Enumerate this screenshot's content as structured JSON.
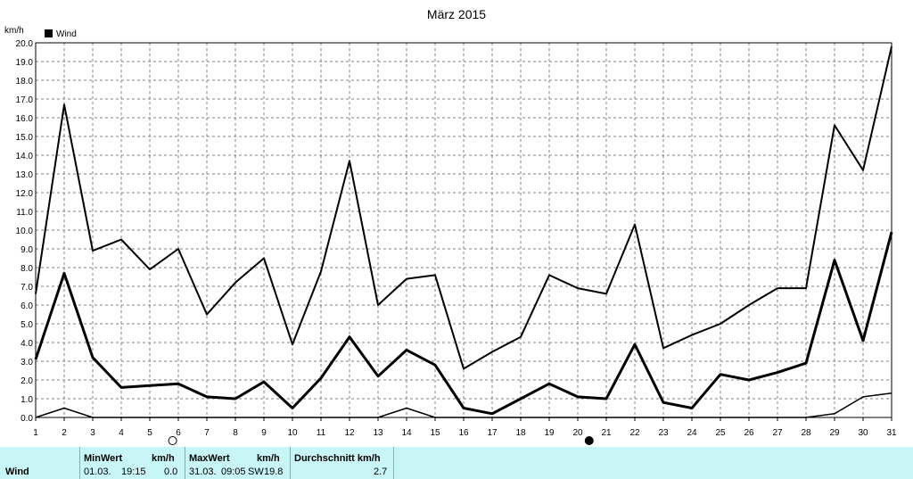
{
  "chart_data": {
    "type": "line",
    "title": "März 2015",
    "ylabel": "km/h",
    "xlabel": "",
    "ylim": [
      0,
      20
    ],
    "yticks": [
      "0.0",
      "1.0",
      "2.0",
      "3.0",
      "4.0",
      "5.0",
      "6.0",
      "7.0",
      "8.0",
      "9.0",
      "10.0",
      "11.0",
      "12.0",
      "13.0",
      "14.0",
      "15.0",
      "16.0",
      "17.0",
      "18.0",
      "19.0",
      "20.0"
    ],
    "x": [
      1,
      2,
      3,
      4,
      5,
      6,
      7,
      8,
      9,
      10,
      11,
      12,
      13,
      14,
      15,
      16,
      17,
      18,
      19,
      20,
      21,
      22,
      23,
      24,
      25,
      26,
      27,
      28,
      29,
      30,
      31
    ],
    "grid": true,
    "legend": {
      "position": "top-left",
      "entries": [
        "Wind"
      ]
    },
    "moon_phases": [
      {
        "day": 5.8,
        "phase": "full-moon"
      },
      {
        "day": 20.4,
        "phase": "new-moon"
      }
    ],
    "series": [
      {
        "name": "Wind",
        "role": "max",
        "values": [
          6.6,
          16.7,
          8.9,
          9.5,
          7.9,
          9.0,
          5.5,
          7.2,
          8.5,
          3.9,
          7.8,
          13.7,
          6.0,
          7.4,
          7.6,
          2.6,
          3.5,
          4.3,
          7.6,
          6.9,
          6.6,
          10.3,
          3.7,
          4.4,
          5.0,
          6.0,
          6.9,
          6.9,
          15.6,
          13.2,
          19.8
        ],
        "color": "#000000"
      },
      {
        "name": "Wind",
        "role": "avg",
        "values": [
          3.1,
          7.7,
          3.2,
          1.6,
          1.7,
          1.8,
          1.1,
          1.0,
          1.9,
          0.5,
          2.1,
          4.3,
          2.2,
          3.6,
          2.8,
          0.5,
          0.2,
          1.0,
          1.8,
          1.1,
          1.0,
          3.9,
          0.8,
          0.5,
          2.3,
          2.0,
          2.4,
          2.9,
          8.4,
          4.1,
          9.9
        ],
        "color": "#000000"
      },
      {
        "name": "Wind",
        "role": "min",
        "values": [
          0.0,
          0.5,
          0.0,
          0.0,
          0.0,
          0.0,
          0.0,
          0.0,
          0.0,
          0.0,
          0.0,
          0.0,
          0.0,
          0.5,
          0.0,
          0.0,
          0.0,
          0.0,
          0.0,
          0.0,
          0.0,
          0.0,
          0.0,
          0.0,
          0.0,
          0.0,
          0.0,
          0.0,
          0.2,
          1.1,
          1.3
        ],
        "color": "#000000"
      }
    ]
  },
  "stats": {
    "row_label": "Wind",
    "min_header": "MinWert",
    "min_unit": "km/h",
    "min_date": "01.03.",
    "min_time": "19:15",
    "min_value": "0.0",
    "max_header": "MaxWert",
    "max_unit": "km/h",
    "max_date": "31.03.",
    "max_time": "09:05",
    "max_dir": "SW",
    "max_value": "19.8",
    "avg_header": "Durchschnitt km/h",
    "avg_value": "2.7"
  },
  "colors": {
    "stats_bg": "#c8f6f6",
    "line": "#000000",
    "grid": "#808080"
  }
}
